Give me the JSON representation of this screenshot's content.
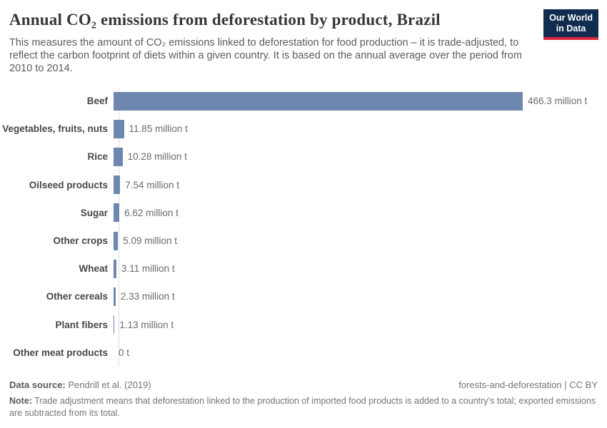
{
  "header": {
    "title": "Annual CO₂ emissions from deforestation by product, Brazil",
    "subtitle": "This measures the amount of CO₂ emissions linked to deforestation for food production – it is trade-adjusted, to reflect the carbon footprint of diets within a given country. It is based on the annual average over the period from 2010 to 2014.",
    "logo_line1": "Our World",
    "logo_line2": "in Data",
    "logo_bg_color": "#102d50",
    "logo_accent_color": "#dc2740"
  },
  "chart_data": {
    "type": "bar",
    "orientation": "horizontal",
    "title": "Annual CO₂ emissions from deforestation by product, Brazil",
    "unit": "million t",
    "categories": [
      "Beef",
      "Vegetables, fruits, nuts",
      "Rice",
      "Oilseed products",
      "Sugar",
      "Other crops",
      "Wheat",
      "Other cereals",
      "Plant fibers",
      "Other meat products"
    ],
    "values": [
      466.3,
      11.85,
      10.28,
      7.54,
      6.62,
      5.09,
      3.11,
      2.33,
      1.13,
      0
    ],
    "value_labels": [
      "466.3 million t",
      "11.85 million t",
      "10.28 million t",
      "7.54 million t",
      "6.62 million t",
      "5.09 million t",
      "3.11 million t",
      "2.33 million t",
      "1.13 million t",
      "0 t"
    ],
    "xlim": [
      0,
      466.3
    ],
    "grid": false,
    "legend": false,
    "bar_color": "#6d87ae"
  },
  "footer": {
    "datasource_label": "Data source:",
    "datasource_value": "Pendrill et al. (2019)",
    "license": "forests-and-deforestation | CC BY",
    "note_label": "Note:",
    "note_text": "Trade adjustment means that deforestation linked to the production of imported food products is added to a country’s total; exported emissions are subtracted from its total."
  }
}
